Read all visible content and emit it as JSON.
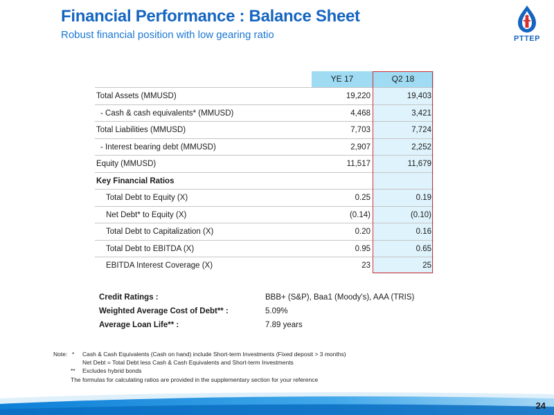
{
  "header": {
    "title": "Financial Performance : Balance Sheet",
    "subtitle": "Robust financial position with low gearing ratio"
  },
  "logo": {
    "text": "PTTEP",
    "icon": "pttep-flame-logo"
  },
  "table": {
    "columns": [
      "YE 17",
      "Q2 18"
    ],
    "rows": [
      {
        "label": "Total Assets (MMUSD)",
        "ye17": "19,220",
        "q218": "19,403",
        "style": "normal"
      },
      {
        "label": "- Cash & cash equivalents* (MMUSD)",
        "ye17": "4,468",
        "q218": "3,421",
        "style": "indent"
      },
      {
        "label": "Total Liabilities (MMUSD)",
        "ye17": "7,703",
        "q218": "7,724",
        "style": "normal"
      },
      {
        "label": "-  Interest bearing debt (MMUSD)",
        "ye17": "2,907",
        "q218": "2,252",
        "style": "indent"
      },
      {
        "label": "Equity (MMUSD)",
        "ye17": "11,517",
        "q218": "11,679",
        "style": "normal"
      },
      {
        "label": "Key Financial Ratios",
        "ye17": "",
        "q218": "",
        "style": "key"
      },
      {
        "label": "Total Debt to Equity (X)",
        "ye17": "0.25",
        "q218": "0.19",
        "style": "ratio"
      },
      {
        "label": "Net Debt* to Equity (X)",
        "ye17": "(0.14)",
        "q218": "(0.10)",
        "style": "ratio"
      },
      {
        "label": "Total Debt to Capitalization (X)",
        "ye17": "0.20",
        "q218": "0.16",
        "style": "ratio"
      },
      {
        "label": "Total Debt to EBITDA (X)",
        "ye17": "0.95",
        "q218": "0.65",
        "style": "ratio"
      },
      {
        "label": "EBITDA Interest Coverage (X)",
        "ye17": "23",
        "q218": "25",
        "style": "ratio"
      }
    ]
  },
  "credit": [
    {
      "label": "Credit Ratings :",
      "value": "BBB+ (S&P), Baa1 (Moody's),  AAA (TRIS)"
    },
    {
      "label": "Weighted Average Cost of Debt** :",
      "value": "5.09%"
    },
    {
      "label": "Average Loan Life** :",
      "value": "7.89 years"
    }
  ],
  "notes": {
    "prefix": "Note:",
    "star1_mark": "*",
    "star1": "Cash & Cash Equivalents (Cash on hand) include Short-term Investments (Fixed deposit > 3 months)",
    "star1_b": "Net Debt = Total Debt less Cash & Cash Equivalents and Short-term Investments",
    "star2_mark": "**",
    "star2": "Excludes hybrid bonds",
    "formula": "The formulas for calculating ratios are provided in the supplementary section for your reference"
  },
  "page_number": "24",
  "colors": {
    "title": "#1565c0",
    "header_fill": "#9fdbf3",
    "highlight_col": "#dff3fc",
    "highlight_border": "#d32f2f"
  }
}
